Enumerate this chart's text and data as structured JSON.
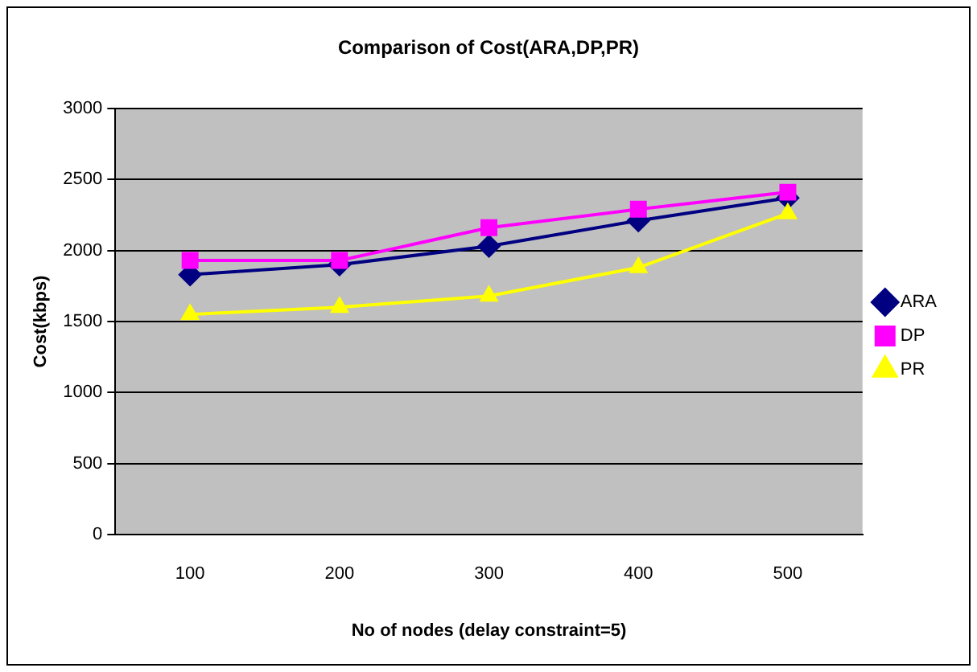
{
  "chart_data": {
    "type": "line",
    "title": "Comparison of Cost(ARA,DP,PR)",
    "xlabel": "No of nodes (delay constraint=5)",
    "ylabel": "Cost(kbps)",
    "categories": [
      "100",
      "200",
      "300",
      "400",
      "500"
    ],
    "series": [
      {
        "name": "ARA",
        "color": "#000080",
        "marker": "diamond",
        "values": [
          1830,
          1900,
          2030,
          2210,
          2370
        ]
      },
      {
        "name": "DP",
        "color": "#ff00ff",
        "marker": "square",
        "values": [
          1930,
          1930,
          2160,
          2290,
          2410
        ]
      },
      {
        "name": "PR",
        "color": "#ffff00",
        "marker": "triangle",
        "values": [
          1550,
          1600,
          1680,
          1880,
          2260
        ]
      }
    ],
    "ylim": [
      0,
      3000
    ],
    "yticks": [
      0,
      500,
      1000,
      1500,
      2000,
      2500,
      3000
    ],
    "grid": "y",
    "legend": "right"
  }
}
